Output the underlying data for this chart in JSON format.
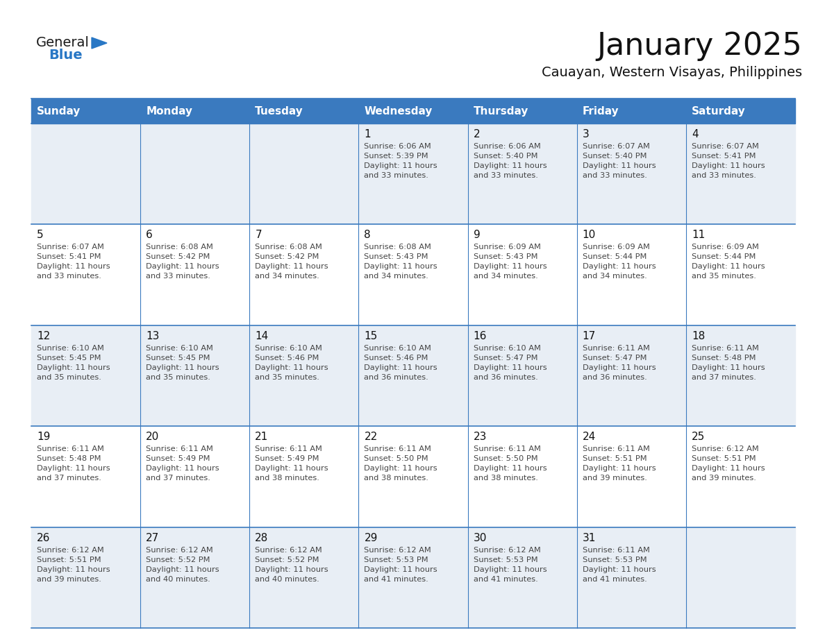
{
  "title": "January 2025",
  "subtitle": "Cauayan, Western Visayas, Philippines",
  "header_bg": "#3a7abf",
  "header_text_color": "#ffffff",
  "row_bg_light": "#e8eef5",
  "row_bg_white": "#ffffff",
  "grid_line_color": "#3a7abf",
  "day_names": [
    "Sunday",
    "Monday",
    "Tuesday",
    "Wednesday",
    "Thursday",
    "Friday",
    "Saturday"
  ],
  "cell_text_color": "#444444",
  "day_number_color": "#111111",
  "logo_general_color": "#1a1a1a",
  "logo_blue_color": "#2877c5",
  "calendar": [
    [
      null,
      null,
      null,
      {
        "day": 1,
        "sunrise": "6:06 AM",
        "sunset": "5:39 PM",
        "daylight": "11 hours and 33 minutes."
      },
      {
        "day": 2,
        "sunrise": "6:06 AM",
        "sunset": "5:40 PM",
        "daylight": "11 hours and 33 minutes."
      },
      {
        "day": 3,
        "sunrise": "6:07 AM",
        "sunset": "5:40 PM",
        "daylight": "11 hours and 33 minutes."
      },
      {
        "day": 4,
        "sunrise": "6:07 AM",
        "sunset": "5:41 PM",
        "daylight": "11 hours and 33 minutes."
      }
    ],
    [
      {
        "day": 5,
        "sunrise": "6:07 AM",
        "sunset": "5:41 PM",
        "daylight": "11 hours and 33 minutes."
      },
      {
        "day": 6,
        "sunrise": "6:08 AM",
        "sunset": "5:42 PM",
        "daylight": "11 hours and 33 minutes."
      },
      {
        "day": 7,
        "sunrise": "6:08 AM",
        "sunset": "5:42 PM",
        "daylight": "11 hours and 34 minutes."
      },
      {
        "day": 8,
        "sunrise": "6:08 AM",
        "sunset": "5:43 PM",
        "daylight": "11 hours and 34 minutes."
      },
      {
        "day": 9,
        "sunrise": "6:09 AM",
        "sunset": "5:43 PM",
        "daylight": "11 hours and 34 minutes."
      },
      {
        "day": 10,
        "sunrise": "6:09 AM",
        "sunset": "5:44 PM",
        "daylight": "11 hours and 34 minutes."
      },
      {
        "day": 11,
        "sunrise": "6:09 AM",
        "sunset": "5:44 PM",
        "daylight": "11 hours and 35 minutes."
      }
    ],
    [
      {
        "day": 12,
        "sunrise": "6:10 AM",
        "sunset": "5:45 PM",
        "daylight": "11 hours and 35 minutes."
      },
      {
        "day": 13,
        "sunrise": "6:10 AM",
        "sunset": "5:45 PM",
        "daylight": "11 hours and 35 minutes."
      },
      {
        "day": 14,
        "sunrise": "6:10 AM",
        "sunset": "5:46 PM",
        "daylight": "11 hours and 35 minutes."
      },
      {
        "day": 15,
        "sunrise": "6:10 AM",
        "sunset": "5:46 PM",
        "daylight": "11 hours and 36 minutes."
      },
      {
        "day": 16,
        "sunrise": "6:10 AM",
        "sunset": "5:47 PM",
        "daylight": "11 hours and 36 minutes."
      },
      {
        "day": 17,
        "sunrise": "6:11 AM",
        "sunset": "5:47 PM",
        "daylight": "11 hours and 36 minutes."
      },
      {
        "day": 18,
        "sunrise": "6:11 AM",
        "sunset": "5:48 PM",
        "daylight": "11 hours and 37 minutes."
      }
    ],
    [
      {
        "day": 19,
        "sunrise": "6:11 AM",
        "sunset": "5:48 PM",
        "daylight": "11 hours and 37 minutes."
      },
      {
        "day": 20,
        "sunrise": "6:11 AM",
        "sunset": "5:49 PM",
        "daylight": "11 hours and 37 minutes."
      },
      {
        "day": 21,
        "sunrise": "6:11 AM",
        "sunset": "5:49 PM",
        "daylight": "11 hours and 38 minutes."
      },
      {
        "day": 22,
        "sunrise": "6:11 AM",
        "sunset": "5:50 PM",
        "daylight": "11 hours and 38 minutes."
      },
      {
        "day": 23,
        "sunrise": "6:11 AM",
        "sunset": "5:50 PM",
        "daylight": "11 hours and 38 minutes."
      },
      {
        "day": 24,
        "sunrise": "6:11 AM",
        "sunset": "5:51 PM",
        "daylight": "11 hours and 39 minutes."
      },
      {
        "day": 25,
        "sunrise": "6:12 AM",
        "sunset": "5:51 PM",
        "daylight": "11 hours and 39 minutes."
      }
    ],
    [
      {
        "day": 26,
        "sunrise": "6:12 AM",
        "sunset": "5:51 PM",
        "daylight": "11 hours and 39 minutes."
      },
      {
        "day": 27,
        "sunrise": "6:12 AM",
        "sunset": "5:52 PM",
        "daylight": "11 hours and 40 minutes."
      },
      {
        "day": 28,
        "sunrise": "6:12 AM",
        "sunset": "5:52 PM",
        "daylight": "11 hours and 40 minutes."
      },
      {
        "day": 29,
        "sunrise": "6:12 AM",
        "sunset": "5:53 PM",
        "daylight": "11 hours and 41 minutes."
      },
      {
        "day": 30,
        "sunrise": "6:12 AM",
        "sunset": "5:53 PM",
        "daylight": "11 hours and 41 minutes."
      },
      {
        "day": 31,
        "sunrise": "6:11 AM",
        "sunset": "5:53 PM",
        "daylight": "11 hours and 41 minutes."
      },
      null
    ]
  ]
}
